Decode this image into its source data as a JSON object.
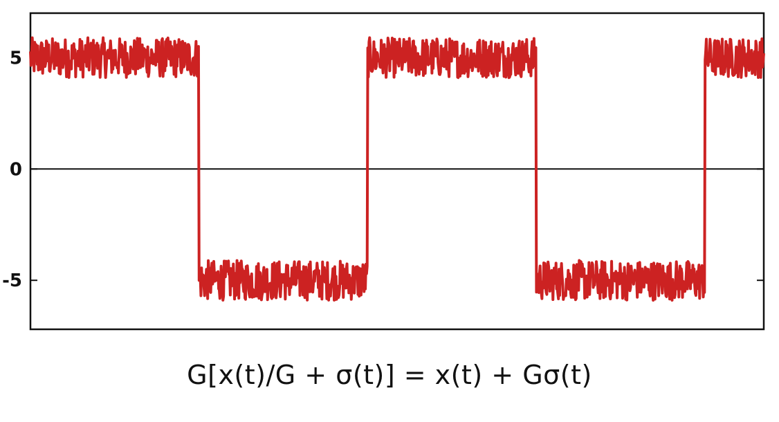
{
  "chart_data": {
    "type": "line",
    "title": "",
    "xlabel": "",
    "ylabel": "",
    "ylim": [
      -7.2,
      7.0
    ],
    "xlim": [
      0,
      4.35
    ],
    "yticks": [
      {
        "value": 5,
        "label": "5"
      },
      {
        "value": 0,
        "label": "0"
      },
      {
        "value": -5,
        "label": "-5"
      }
    ],
    "zero_line": true,
    "grid": false,
    "legend": "none",
    "series": [
      {
        "kind": "noisy-square-wave",
        "amplitude": 5,
        "period": 2,
        "transitions": [
          1,
          2,
          3,
          4
        ],
        "noise_amplitude": 0.9,
        "samples": 1200,
        "color": "#cc2222"
      }
    ]
  },
  "caption": {
    "equation": "G[x(t)/G + σ(t)] = x(t) + Gσ(t)"
  }
}
